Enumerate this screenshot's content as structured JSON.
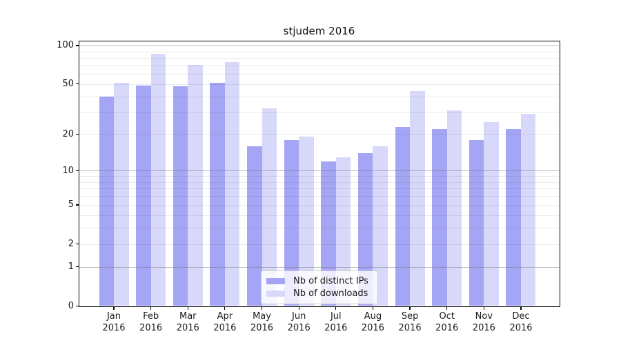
{
  "title": "stjudem 2016",
  "colors": {
    "bar_dark": "#a5a5f6",
    "bar_light": "#d8d8fa",
    "axis": "#000000",
    "grid_major": "rgba(120,120,120,0.5)",
    "grid_minor": "rgba(0,0,0,0.08)",
    "legend_border": "#cccccc",
    "text": "#1a1a1a"
  },
  "legend": {
    "item1": "Nb of distinct IPs",
    "item2": "Nb of downloads"
  },
  "chart_data": {
    "type": "bar",
    "title": "stjudem 2016",
    "categories": [
      "Jan",
      "Feb",
      "Mar",
      "Apr",
      "May",
      "Jun",
      "Jul",
      "Aug",
      "Sep",
      "Oct",
      "Nov",
      "Dec"
    ],
    "x_sublabel": "2016",
    "series": [
      {
        "name": "Nb of distinct IPs",
        "color": "#a5a5f6",
        "values": [
          40,
          49,
          48,
          51,
          16,
          18,
          12,
          14,
          23,
          22,
          18,
          22
        ]
      },
      {
        "name": "Nb of downloads",
        "color": "#d8d8fa",
        "values": [
          51,
          86,
          71,
          74,
          32,
          19,
          13,
          16,
          44,
          31,
          25,
          29
        ]
      }
    ],
    "yscale": "log1p",
    "yticks_labeled": [
      0,
      1,
      2,
      5,
      10,
      20,
      50,
      100
    ],
    "ygrid_major": [
      1,
      10,
      100
    ],
    "ygrid_minor": [
      2,
      3,
      4,
      5,
      6,
      7,
      8,
      9,
      20,
      30,
      40,
      50,
      60,
      70,
      80,
      90
    ],
    "ylim": [
      0,
      107
    ],
    "grid": true,
    "legend_position": "lower center"
  }
}
